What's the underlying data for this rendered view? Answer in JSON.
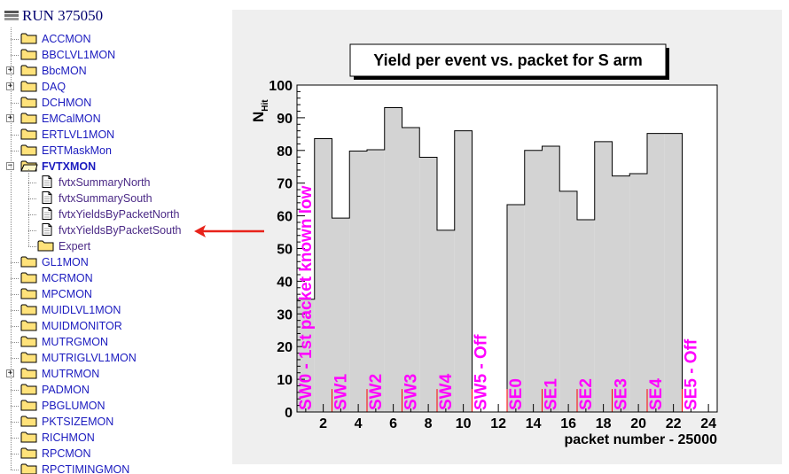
{
  "tree": {
    "root_label": "RUN 375050",
    "items": [
      {
        "label": "ACCMON",
        "expandable": false
      },
      {
        "label": "BBCLVL1MON",
        "expandable": false
      },
      {
        "label": "BbcMON",
        "expandable": true
      },
      {
        "label": "DAQ",
        "expandable": true
      },
      {
        "label": "DCHMON",
        "expandable": false
      },
      {
        "label": "EMCalMON",
        "expandable": true
      },
      {
        "label": "ERTLVL1MON",
        "expandable": false
      },
      {
        "label": "ERTMaskMon",
        "expandable": false
      },
      {
        "label": "FVTXMON",
        "expandable": true,
        "open": true,
        "children": [
          {
            "label": "fvtxSummaryNorth",
            "type": "file"
          },
          {
            "label": "fvtxSummarySouth",
            "type": "file"
          },
          {
            "label": "fvtxYieldsByPacketNorth",
            "type": "file"
          },
          {
            "label": "fvtxYieldsByPacketSouth",
            "type": "file"
          },
          {
            "label": "Expert",
            "type": "folder"
          }
        ]
      },
      {
        "label": "GL1MON",
        "expandable": false
      },
      {
        "label": "MCRMON",
        "expandable": false
      },
      {
        "label": "MPCMON",
        "expandable": false
      },
      {
        "label": "MUIDLVL1MON",
        "expandable": false
      },
      {
        "label": "MUIDMONITOR",
        "expandable": false
      },
      {
        "label": "MUTRGMON",
        "expandable": false
      },
      {
        "label": "MUTRIGLVL1MON",
        "expandable": false
      },
      {
        "label": "MUTRMON",
        "expandable": true
      },
      {
        "label": "PADMON",
        "expandable": false
      },
      {
        "label": "PBGLUMON",
        "expandable": false
      },
      {
        "label": "PKTSIZEMON",
        "expandable": false
      },
      {
        "label": "RICHMON",
        "expandable": false
      },
      {
        "label": "RPCMON",
        "expandable": false
      },
      {
        "label": "RPCTIMINGMON",
        "expandable": false
      }
    ]
  },
  "colors": {
    "tree_text": "#1b1bbf",
    "tree_child_text": "#4b2a86",
    "folder_fill": "#ffe27a",
    "hist_fill": "#d3d3d3",
    "label_color": "#ff00ff",
    "tick_red": "#ff0000",
    "arrow": "#e8231a",
    "panel_bg": "#efefef"
  },
  "chart_data": {
    "type": "bar",
    "title": "Yield per event vs. packet for S arm",
    "ylabel_main": "N",
    "ylabel_sub": "Hit",
    "xlabel": "packet number - 25000",
    "xlim": [
      0.5,
      24.5
    ],
    "ylim": [
      0,
      100
    ],
    "x_ticks": [
      2,
      4,
      6,
      8,
      10,
      12,
      14,
      16,
      18,
      20,
      22,
      24
    ],
    "y_ticks": [
      0,
      10,
      20,
      30,
      40,
      50,
      60,
      70,
      80,
      90,
      100
    ],
    "bins": [
      {
        "x": 1,
        "value": 34.5
      },
      {
        "x": 2,
        "value": 83.6
      },
      {
        "x": 3,
        "value": 59.3
      },
      {
        "x": 4,
        "value": 79.8
      },
      {
        "x": 5,
        "value": 80.2
      },
      {
        "x": 6,
        "value": 93.1
      },
      {
        "x": 7,
        "value": 87.0
      },
      {
        "x": 8,
        "value": 77.9
      },
      {
        "x": 9,
        "value": 55.6
      },
      {
        "x": 10,
        "value": 86.0
      },
      {
        "x": 11,
        "value": 0
      },
      {
        "x": 12,
        "value": 0
      },
      {
        "x": 13,
        "value": 63.4
      },
      {
        "x": 14,
        "value": 80.0
      },
      {
        "x": 15,
        "value": 81.3
      },
      {
        "x": 16,
        "value": 67.5
      },
      {
        "x": 17,
        "value": 58.8
      },
      {
        "x": 18,
        "value": 82.7
      },
      {
        "x": 19,
        "value": 72.2
      },
      {
        "x": 20,
        "value": 72.9
      },
      {
        "x": 21,
        "value": 85.2
      },
      {
        "x": 22,
        "value": 85.2
      },
      {
        "x": 23,
        "value": 0
      },
      {
        "x": 24,
        "value": 0
      }
    ],
    "sector_labels": [
      {
        "text": "SW0 - 1st packet known low",
        "x": 1
      },
      {
        "text": "SW1",
        "x": 3
      },
      {
        "text": "SW2",
        "x": 5
      },
      {
        "text": "SW3",
        "x": 7
      },
      {
        "text": "SW4",
        "x": 9
      },
      {
        "text": "SW5 - Off",
        "x": 11
      },
      {
        "text": "SE0",
        "x": 13
      },
      {
        "text": "SE1",
        "x": 15
      },
      {
        "text": "SE2",
        "x": 17
      },
      {
        "text": "SE3",
        "x": 19
      },
      {
        "text": "SE4",
        "x": 21
      },
      {
        "text": "SE5 - Off",
        "x": 23
      }
    ],
    "sector_boundaries": [
      0.5,
      2.5,
      4.5,
      6.5,
      8.5,
      10.5,
      12.5,
      14.5,
      16.5,
      18.5,
      20.5,
      22.5,
      24.5
    ],
    "grid": false,
    "legend": "none"
  },
  "annotation": {
    "arrow_points_to": "fvtxYieldsByPacketSouth"
  }
}
